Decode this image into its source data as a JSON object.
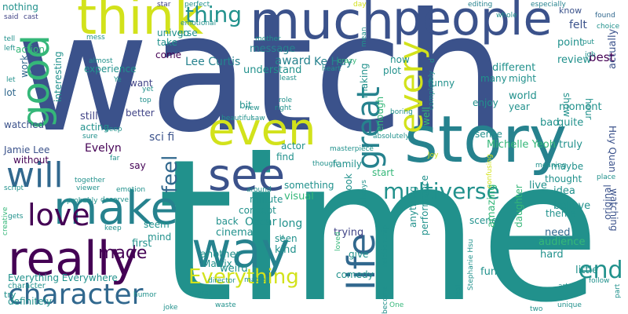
{
  "palette": {
    "purple": "#440154",
    "indigo": "#3b528b",
    "navy": "#414487",
    "steel": "#31688e",
    "teal": "#21918c",
    "cyan": "#26828e",
    "green": "#35b779",
    "lime": "#90d743",
    "yellow": "#d2e21b",
    "gold": "#fde725"
  },
  "words": [
    {
      "text": "watch",
      "color": "#3b528b"
    },
    {
      "text": "time",
      "color": "#21918c"
    },
    {
      "text": "story",
      "color": "#26828e"
    },
    {
      "text": "much",
      "color": "#3b528b"
    },
    {
      "text": "people",
      "color": "#3b528b"
    },
    {
      "text": "think",
      "color": "#d2e21b"
    },
    {
      "text": "good",
      "color": "#35b779"
    },
    {
      "text": "really",
      "color": "#440154"
    },
    {
      "text": "even",
      "color": "#d2e21b"
    },
    {
      "text": "see",
      "color": "#3b528b"
    },
    {
      "text": "make",
      "color": "#26828e"
    },
    {
      "text": "way",
      "color": "#26828e"
    },
    {
      "text": "will",
      "color": "#31688e"
    },
    {
      "text": "character",
      "color": "#31688e"
    },
    {
      "text": "love",
      "color": "#440154"
    },
    {
      "text": "life",
      "color": "#31688e"
    },
    {
      "text": "great",
      "color": "#26828e"
    },
    {
      "text": "every",
      "color": "#d2e21b"
    },
    {
      "text": "multiverse",
      "color": "#21918c"
    },
    {
      "text": "Everything",
      "color": "#d2e21b"
    },
    {
      "text": "thing",
      "color": "#21918c"
    },
    {
      "text": "made",
      "color": "#440154"
    },
    {
      "text": "feel",
      "color": "#31688e"
    },
    {
      "text": "end",
      "color": "#21918c"
    },
    {
      "text": "nothing",
      "color": "#21918c"
    },
    {
      "text": "said",
      "color": "#414487"
    },
    {
      "text": "cast",
      "color": "#414487"
    },
    {
      "text": "star",
      "color": "#414487"
    },
    {
      "text": "perfect",
      "color": "#21918c"
    },
    {
      "text": "emotional",
      "color": "#21918c"
    },
    {
      "text": "message",
      "color": "#26828e"
    },
    {
      "text": "award",
      "color": "#26828e"
    },
    {
      "text": "day",
      "color": "#d2e21b"
    },
    {
      "text": "editing",
      "color": "#26828e"
    },
    {
      "text": "especially",
      "color": "#26828e"
    },
    {
      "text": "whole",
      "color": "#21918c"
    },
    {
      "text": "know",
      "color": "#3b528b"
    },
    {
      "text": "felt",
      "color": "#3b528b"
    },
    {
      "text": "found",
      "color": "#31688e"
    },
    {
      "text": "choice",
      "color": "#21918c"
    },
    {
      "text": "point",
      "color": "#21918c"
    },
    {
      "text": "actually",
      "color": "#3b528b"
    },
    {
      "text": "Lee Curtis",
      "color": "#26828e"
    },
    {
      "text": "Ke Huy",
      "color": "#26828e"
    },
    {
      "text": "review",
      "color": "#21918c"
    },
    {
      "text": "best",
      "color": "#440154"
    },
    {
      "text": "experience",
      "color": "#21918c"
    },
    {
      "text": "come",
      "color": "#440154"
    },
    {
      "text": "understand",
      "color": "#21918c"
    },
    {
      "text": "plot",
      "color": "#21918c"
    },
    {
      "text": "now",
      "color": "#21918c"
    },
    {
      "text": "different",
      "color": "#21918c"
    },
    {
      "text": "many",
      "color": "#21918c"
    },
    {
      "text": "might",
      "color": "#21918c"
    },
    {
      "text": "show",
      "color": "#21918c"
    },
    {
      "text": "hour",
      "color": "#21918c"
    },
    {
      "text": "interesting",
      "color": "#21918c"
    },
    {
      "text": "action",
      "color": "#35b779"
    },
    {
      "text": "work",
      "color": "#31688e"
    },
    {
      "text": "lot",
      "color": "#31688e"
    },
    {
      "text": "want",
      "color": "#414487"
    },
    {
      "text": "better",
      "color": "#414487"
    },
    {
      "text": "funny",
      "color": "#21918c"
    },
    {
      "text": "making",
      "color": "#21918c"
    },
    {
      "text": "enjoy",
      "color": "#21918c"
    },
    {
      "text": "world",
      "color": "#21918c"
    },
    {
      "text": "year",
      "color": "#21918c"
    },
    {
      "text": "moment",
      "color": "#21918c"
    },
    {
      "text": "quite",
      "color": "#21918c"
    },
    {
      "text": "bad",
      "color": "#21918c"
    },
    {
      "text": "still",
      "color": "#414487"
    },
    {
      "text": "acting",
      "color": "#21918c"
    },
    {
      "text": "watched",
      "color": "#3b528b"
    },
    {
      "text": "Jamie Lee",
      "color": "#3b528b"
    },
    {
      "text": "without",
      "color": "#440154"
    },
    {
      "text": "Evelyn",
      "color": "#440154"
    },
    {
      "text": "sci fi",
      "color": "#3b528b"
    },
    {
      "text": "say",
      "color": "#440154"
    },
    {
      "text": "universe",
      "color": "#21918c"
    },
    {
      "text": "actor",
      "color": "#21918c"
    },
    {
      "text": "find",
      "color": "#21918c"
    },
    {
      "text": "sense",
      "color": "#21918c"
    },
    {
      "text": "Michelle Yeoh",
      "color": "#35b779"
    },
    {
      "text": "truly",
      "color": "#21918c"
    },
    {
      "text": "maybe",
      "color": "#21918c"
    },
    {
      "text": "thought",
      "color": "#21918c"
    },
    {
      "text": "Huy Quan",
      "color": "#3b528b"
    },
    {
      "text": "watching",
      "color": "#3b528b"
    },
    {
      "text": "original",
      "color": "#3b528b"
    },
    {
      "text": "family",
      "color": "#21918c"
    },
    {
      "text": "start",
      "color": "#35b779"
    },
    {
      "text": "live",
      "color": "#21918c"
    },
    {
      "text": "idea",
      "color": "#21918c"
    },
    {
      "text": "believe",
      "color": "#21918c"
    },
    {
      "text": "minute",
      "color": "#21918c"
    },
    {
      "text": "concept",
      "color": "#21918c"
    },
    {
      "text": "something",
      "color": "#21918c"
    },
    {
      "text": "visual",
      "color": "#35b779"
    },
    {
      "text": "look",
      "color": "#21918c"
    },
    {
      "text": "theme",
      "color": "#21918c"
    },
    {
      "text": "need",
      "color": "#31688e"
    },
    {
      "text": "audience",
      "color": "#35b779"
    },
    {
      "text": "hard",
      "color": "#21918c"
    },
    {
      "text": "little",
      "color": "#21918c"
    },
    {
      "text": "back",
      "color": "#21918c"
    },
    {
      "text": "cinema",
      "color": "#21918c"
    },
    {
      "text": "Oscar",
      "color": "#21918c"
    },
    {
      "text": "long",
      "color": "#21918c"
    },
    {
      "text": "seem",
      "color": "#21918c"
    },
    {
      "text": "mind",
      "color": "#21918c"
    },
    {
      "text": "first",
      "color": "#21918c"
    },
    {
      "text": "trying",
      "color": "#414487"
    },
    {
      "text": "give",
      "color": "#21918c"
    },
    {
      "text": "scene",
      "color": "#21918c"
    },
    {
      "text": "anything",
      "color": "#21918c"
    },
    {
      "text": "performance",
      "color": "#21918c"
    },
    {
      "text": "amazing",
      "color": "#35b779"
    },
    {
      "text": "fun",
      "color": "#21918c"
    },
    {
      "text": "daughter",
      "color": "#35b779"
    },
    {
      "text": "comedy",
      "color": "#21918c"
    },
    {
      "text": "kind",
      "color": "#21918c"
    },
    {
      "text": "seen",
      "color": "#21918c"
    },
    {
      "text": "another",
      "color": "#21918c"
    },
    {
      "text": "Matrix",
      "color": "#21918c"
    },
    {
      "text": "weird",
      "color": "#21918c"
    },
    {
      "text": "Everything Everywhere",
      "color": "#21918c"
    },
    {
      "text": "character",
      "color": "#21918c"
    },
    {
      "text": "definitely",
      "color": "#21918c"
    },
    {
      "text": "try",
      "color": "#21918c"
    },
    {
      "text": "humor",
      "color": "#21918c"
    },
    {
      "text": "joke",
      "color": "#21918c"
    },
    {
      "text": "overall",
      "color": "#21918c"
    },
    {
      "text": "waste",
      "color": "#21918c"
    },
    {
      "text": "director",
      "color": "#21918c"
    },
    {
      "text": "matter",
      "color": "#21918c"
    },
    {
      "text": "loved",
      "color": "#35b779"
    },
    {
      "text": "always",
      "color": "#21918c"
    },
    {
      "text": "become",
      "color": "#21918c"
    },
    {
      "text": "real",
      "color": "#21918c"
    },
    {
      "text": "relationship",
      "color": "#21918c"
    },
    {
      "text": "Stephanie Hsu",
      "color": "#21918c"
    },
    {
      "text": "art",
      "color": "#21918c"
    },
    {
      "text": "unique",
      "color": "#21918c"
    },
    {
      "text": "follow",
      "color": "#21918c"
    },
    {
      "text": "One",
      "color": "#35b779"
    },
    {
      "text": "two",
      "color": "#21918c"
    },
    {
      "text": "part",
      "color": "#21918c"
    },
    {
      "text": "place",
      "color": "#21918c"
    },
    {
      "text": "meaning",
      "color": "#21918c"
    },
    {
      "text": "confusing",
      "color": "#d2e21b"
    },
    {
      "text": "Joy",
      "color": "#d2e21b"
    },
    {
      "text": "absolutely",
      "color": "#21918c"
    },
    {
      "text": "masterpiece",
      "color": "#21918c"
    },
    {
      "text": "though",
      "color": "#21918c"
    },
    {
      "text": "around",
      "color": "#21918c"
    },
    {
      "text": "beautiful",
      "color": "#21918c"
    },
    {
      "text": "saw",
      "color": "#21918c"
    },
    {
      "text": "new",
      "color": "#21918c"
    },
    {
      "text": "boring",
      "color": "#21918c"
    },
    {
      "text": "completely",
      "color": "#21918c"
    },
    {
      "text": "well",
      "color": "#35b779"
    },
    {
      "text": "enough",
      "color": "#35b779"
    },
    {
      "text": "role",
      "color": "#21918c"
    },
    {
      "text": "right",
      "color": "#21918c"
    },
    {
      "text": "bit",
      "color": "#21918c"
    },
    {
      "text": "least",
      "color": "#21918c"
    },
    {
      "text": "crazy",
      "color": "#35b779"
    },
    {
      "text": "heart",
      "color": "#21918c"
    },
    {
      "text": "mother",
      "color": "#21918c"
    },
    {
      "text": "go",
      "color": "#21918c"
    },
    {
      "text": "take",
      "color": "#21918c"
    },
    {
      "text": "almost",
      "color": "#21918c"
    },
    {
      "text": "Ye",
      "color": "#21918c"
    },
    {
      "text": "yet",
      "color": "#21918c"
    },
    {
      "text": "top",
      "color": "#21918c"
    },
    {
      "text": "deep",
      "color": "#21918c"
    },
    {
      "text": "sure",
      "color": "#21918c"
    },
    {
      "text": "far",
      "color": "#21918c"
    },
    {
      "text": "together",
      "color": "#21918c"
    },
    {
      "text": "emotion",
      "color": "#21918c"
    },
    {
      "text": "viewer",
      "color": "#21918c"
    },
    {
      "text": "deserve",
      "color": "#21918c"
    },
    {
      "text": "probably",
      "color": "#21918c"
    },
    {
      "text": "keep",
      "color": "#21918c"
    },
    {
      "text": "script",
      "color": "#21918c"
    },
    {
      "text": "creative",
      "color": "#35b779"
    },
    {
      "text": "gets",
      "color": "#21918c"
    },
    {
      "text": "mess",
      "color": "#21918c"
    },
    {
      "text": "put",
      "color": "#21918c"
    },
    {
      "text": "tell",
      "color": "#21918c"
    },
    {
      "text": "left",
      "color": "#21918c"
    },
    {
      "text": "let",
      "color": "#21918c"
    },
    {
      "text": "job",
      "color": "#21918c"
    },
    {
      "text": "u",
      "color": "#21918c"
    },
    {
      "text": "d",
      "color": "#21918c"
    },
    {
      "text": "mean",
      "color": "#21918c"
    }
  ]
}
